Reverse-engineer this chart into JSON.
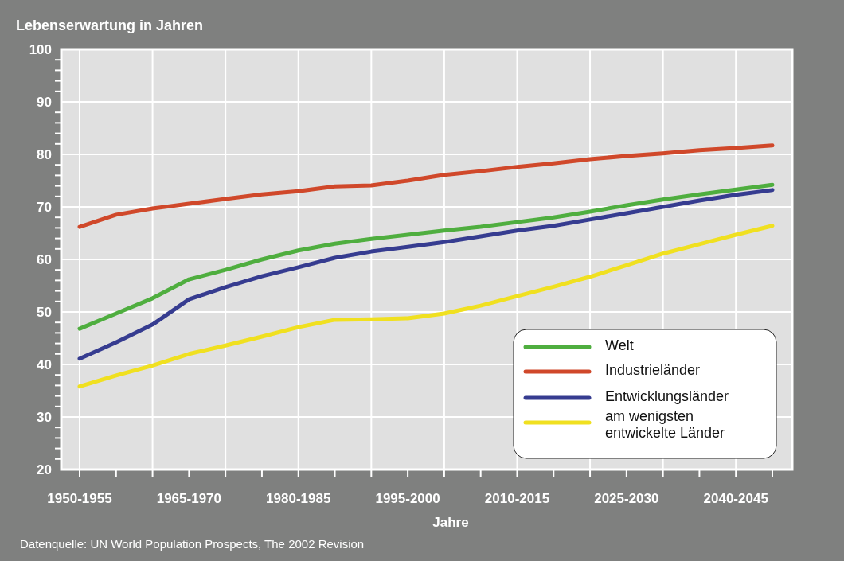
{
  "chart_data": {
    "type": "line",
    "title": "Lebenserwartung in Jahren",
    "xlabel": "Jahre",
    "annotations": [
      "Datenquelle: UN World Population Prospects, The 2002 Revision"
    ],
    "categories": [
      "1950-1955",
      null,
      null,
      "1965-1970",
      null,
      null,
      "1980-1985",
      null,
      null,
      "1995-2000",
      null,
      null,
      "2010-2015",
      null,
      null,
      "2025-2030",
      null,
      null,
      "2040-2045",
      null
    ],
    "ylim": [
      20,
      100
    ],
    "yticks": [
      20,
      {
        "value": 22,
        "label": null
      },
      {
        "value": 24,
        "label": null
      },
      {
        "value": 26,
        "label": null
      },
      {
        "value": 28,
        "label": null
      },
      30,
      {
        "value": 32,
        "label": null
      },
      {
        "value": 34,
        "label": null
      },
      {
        "value": 36,
        "label": null
      },
      {
        "value": 38,
        "label": null
      },
      40,
      {
        "value": 42,
        "label": null
      },
      {
        "value": 44,
        "label": null
      },
      {
        "value": 46,
        "label": null
      },
      {
        "value": 48,
        "label": null
      },
      50,
      {
        "value": 52,
        "label": null
      },
      {
        "value": 54,
        "label": null
      },
      {
        "value": 56,
        "label": null
      },
      {
        "value": 58,
        "label": null
      },
      60,
      {
        "value": 62,
        "label": null
      },
      {
        "value": 64,
        "label": null
      },
      {
        "value": 66,
        "label": null
      },
      {
        "value": 68,
        "label": null
      },
      70,
      {
        "value": 72,
        "label": null
      },
      {
        "value": 74,
        "label": null
      },
      {
        "value": 76,
        "label": null
      },
      {
        "value": 78,
        "label": null
      },
      80,
      {
        "value": 82,
        "label": null
      },
      {
        "value": 84,
        "label": null
      },
      {
        "value": 86,
        "label": null
      },
      {
        "value": 88,
        "label": null
      },
      90,
      {
        "value": 92,
        "label": null
      },
      {
        "value": 94,
        "label": null
      },
      {
        "value": 96,
        "label": null
      },
      {
        "value": 98,
        "label": null
      },
      100
    ],
    "grid": true,
    "legend": "bottom right",
    "line_style": "solid",
    "series": [
      {
        "name": "Welt",
        "color": "#4fae3f",
        "values": [
          46.8,
          49.7,
          52.6,
          56.2,
          58.0,
          60.0,
          61.7,
          63.0,
          63.9,
          64.7,
          65.5,
          66.2,
          67.1,
          68.0,
          69.1,
          70.3,
          71.4,
          72.4,
          73.3,
          74.2
        ]
      },
      {
        "name": "Industrieländer",
        "color": "#d0482a",
        "values": [
          66.2,
          68.5,
          69.7,
          70.6,
          71.5,
          72.4,
          73.0,
          73.9,
          74.1,
          75.0,
          76.1,
          76.8,
          77.6,
          78.3,
          79.1,
          79.7,
          80.2,
          80.8,
          81.2,
          81.7
        ]
      },
      {
        "name": "Entwicklungsländer",
        "color": "#363c90",
        "values": [
          41.1,
          44.2,
          47.6,
          52.4,
          54.7,
          56.8,
          58.5,
          60.3,
          61.5,
          62.4,
          63.3,
          64.4,
          65.5,
          66.4,
          67.6,
          68.8,
          70.0,
          71.2,
          72.3,
          73.2
        ]
      },
      {
        "name": "am wenigsten\nentwickelte Länder",
        "color": "#f0e020",
        "values": [
          35.8,
          37.9,
          39.8,
          42.0,
          43.6,
          45.3,
          47.1,
          48.5,
          48.6,
          48.8,
          49.7,
          51.2,
          53.0,
          54.8,
          56.7,
          58.9,
          61.1,
          62.9,
          64.7,
          66.4
        ]
      }
    ]
  }
}
